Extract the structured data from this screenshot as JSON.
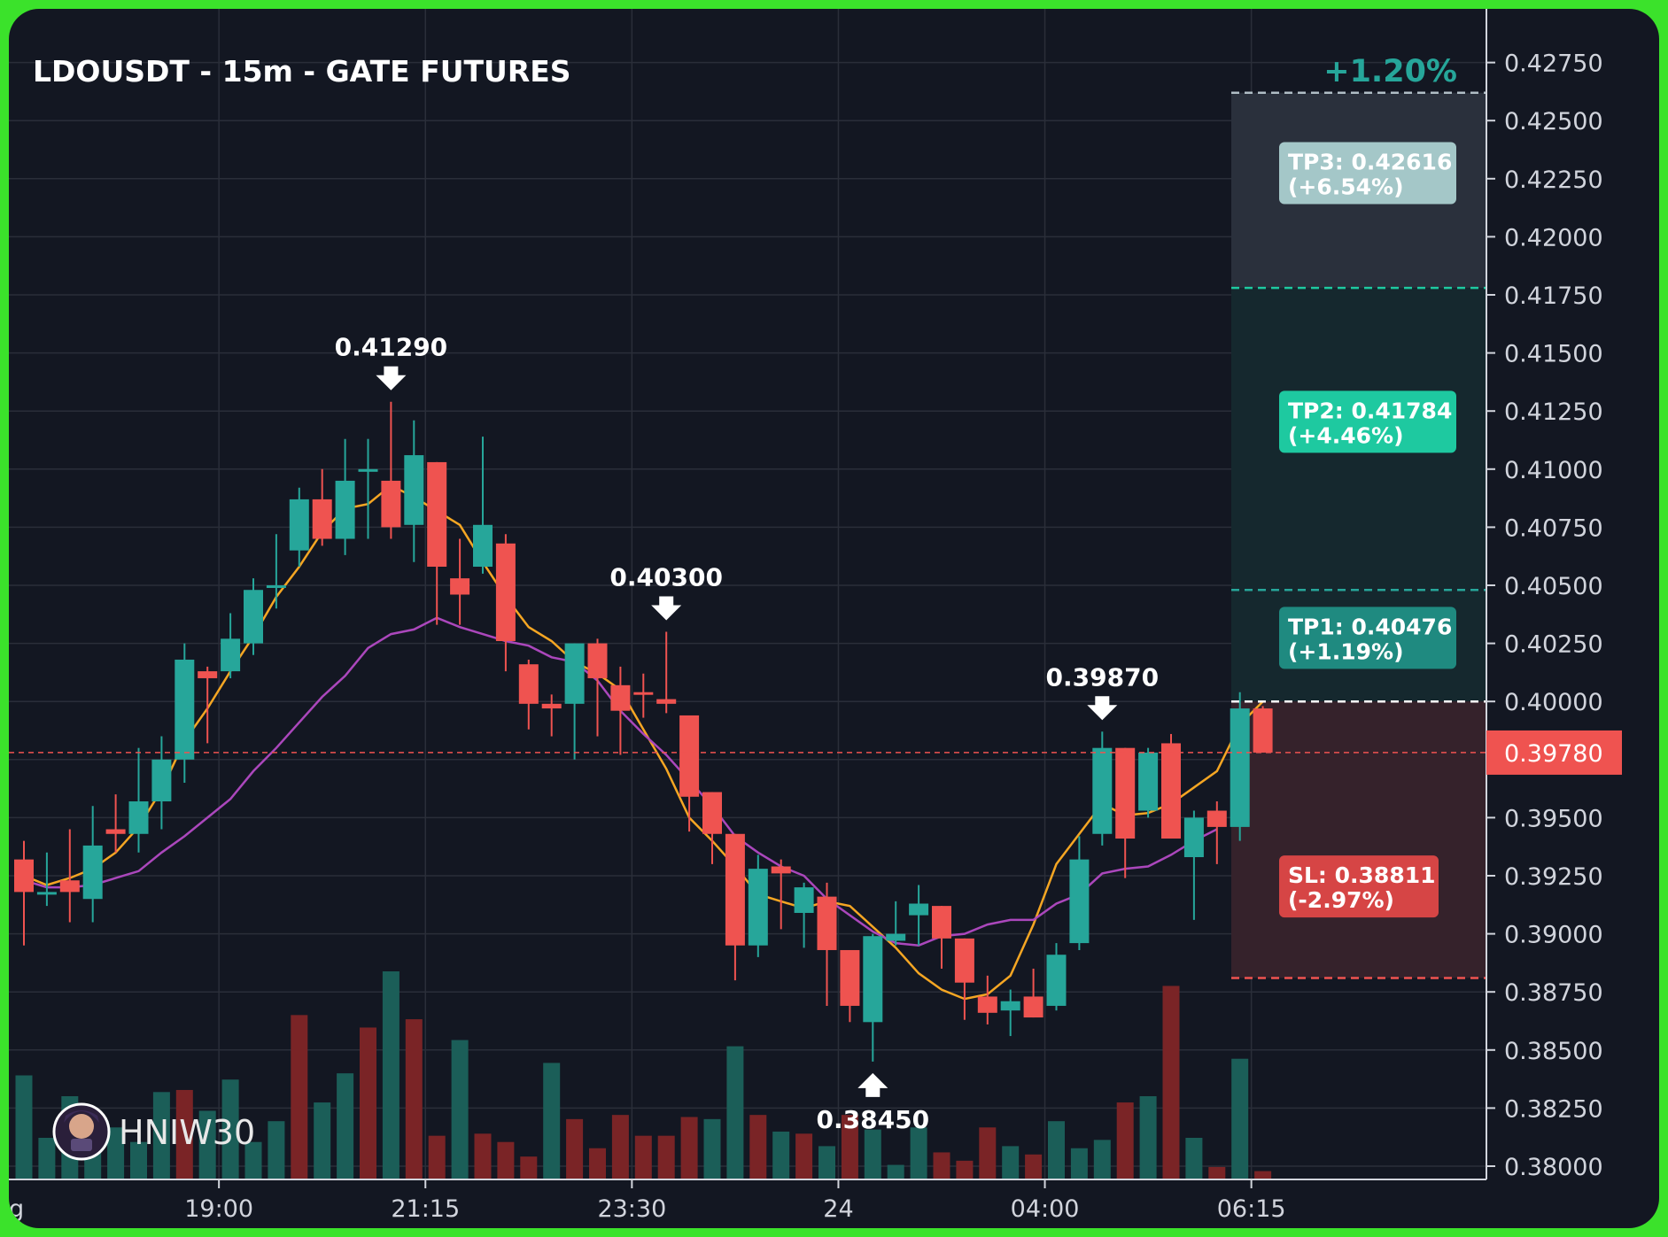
{
  "chart_data": {
    "type": "candlestick",
    "title": "LDOUSDT - 15m - GATE FUTURES",
    "grid": true,
    "ylim": [
      0.3792,
      0.429
    ],
    "y_ticks": [
      "0.38000",
      "0.38250",
      "0.38500",
      "0.38750",
      "0.39000",
      "0.39250",
      "0.39500",
      "0.39750",
      "0.40000",
      "0.40250",
      "0.40500",
      "0.40750",
      "0.41000",
      "0.41250",
      "0.41500",
      "0.41750",
      "0.42000",
      "0.42250",
      "0.42500",
      "0.42750"
    ],
    "x_ticks": [
      {
        "index": 8.5,
        "label": "19:00"
      },
      {
        "index": 17.5,
        "label": "21:15"
      },
      {
        "index": 26.5,
        "label": "23:30"
      },
      {
        "index": 35.5,
        "label": "24"
      },
      {
        "index": 44.5,
        "label": "04:00"
      },
      {
        "index": 53.5,
        "label": "06:15"
      }
    ],
    "x_edge_label": "g",
    "candles": [
      {
        "o": 0.3932,
        "h": 0.394,
        "l": 0.3895,
        "c": 0.3918
      },
      {
        "o": 0.3918,
        "h": 0.3935,
        "l": 0.3912,
        "c": 0.3918
      },
      {
        "o": 0.3923,
        "h": 0.3945,
        "l": 0.3905,
        "c": 0.3918
      },
      {
        "o": 0.3915,
        "h": 0.3955,
        "l": 0.3905,
        "c": 0.3938
      },
      {
        "o": 0.3945,
        "h": 0.396,
        "l": 0.3935,
        "c": 0.3943
      },
      {
        "o": 0.3943,
        "h": 0.398,
        "l": 0.3935,
        "c": 0.3957
      },
      {
        "o": 0.3957,
        "h": 0.3985,
        "l": 0.3945,
        "c": 0.3975
      },
      {
        "o": 0.3975,
        "h": 0.4025,
        "l": 0.3965,
        "c": 0.4018
      },
      {
        "o": 0.4013,
        "h": 0.4015,
        "l": 0.3982,
        "c": 0.401
      },
      {
        "o": 0.4013,
        "h": 0.4038,
        "l": 0.401,
        "c": 0.4027
      },
      {
        "o": 0.4025,
        "h": 0.4053,
        "l": 0.402,
        "c": 0.4048
      },
      {
        "o": 0.405,
        "h": 0.4072,
        "l": 0.404,
        "c": 0.405
      },
      {
        "o": 0.4065,
        "h": 0.4092,
        "l": 0.4058,
        "c": 0.4087
      },
      {
        "o": 0.4087,
        "h": 0.41,
        "l": 0.4067,
        "c": 0.407
      },
      {
        "o": 0.407,
        "h": 0.4113,
        "l": 0.4063,
        "c": 0.4095
      },
      {
        "o": 0.41,
        "h": 0.4113,
        "l": 0.407,
        "c": 0.41
      },
      {
        "o": 0.4095,
        "h": 0.4129,
        "l": 0.407,
        "c": 0.4075
      },
      {
        "o": 0.4076,
        "h": 0.4121,
        "l": 0.406,
        "c": 0.4106
      },
      {
        "o": 0.4103,
        "h": 0.4103,
        "l": 0.4033,
        "c": 0.4058
      },
      {
        "o": 0.4053,
        "h": 0.407,
        "l": 0.4033,
        "c": 0.4046
      },
      {
        "o": 0.4058,
        "h": 0.4114,
        "l": 0.4055,
        "c": 0.4076
      },
      {
        "o": 0.4068,
        "h": 0.4072,
        "l": 0.4013,
        "c": 0.4026
      },
      {
        "o": 0.4016,
        "h": 0.4018,
        "l": 0.3988,
        "c": 0.3999
      },
      {
        "o": 0.3999,
        "h": 0.4003,
        "l": 0.3985,
        "c": 0.3997
      },
      {
        "o": 0.3999,
        "h": 0.4025,
        "l": 0.3975,
        "c": 0.4025
      },
      {
        "o": 0.4025,
        "h": 0.4027,
        "l": 0.3985,
        "c": 0.401
      },
      {
        "o": 0.4007,
        "h": 0.4015,
        "l": 0.3977,
        "c": 0.3996
      },
      {
        "o": 0.4004,
        "h": 0.4012,
        "l": 0.3993,
        "c": 0.4003
      },
      {
        "o": 0.4001,
        "h": 0.403,
        "l": 0.3995,
        "c": 0.3999
      },
      {
        "o": 0.3994,
        "h": 0.3994,
        "l": 0.3944,
        "c": 0.3959
      },
      {
        "o": 0.3961,
        "h": 0.3961,
        "l": 0.393,
        "c": 0.3943
      },
      {
        "o": 0.3943,
        "h": 0.3943,
        "l": 0.388,
        "c": 0.3895
      },
      {
        "o": 0.3895,
        "h": 0.3934,
        "l": 0.389,
        "c": 0.3928
      },
      {
        "o": 0.3929,
        "h": 0.3932,
        "l": 0.3902,
        "c": 0.3926
      },
      {
        "o": 0.3909,
        "h": 0.3922,
        "l": 0.3894,
        "c": 0.392
      },
      {
        "o": 0.3916,
        "h": 0.3922,
        "l": 0.3869,
        "c": 0.3893
      },
      {
        "o": 0.3893,
        "h": 0.3893,
        "l": 0.3862,
        "c": 0.3869
      },
      {
        "o": 0.3862,
        "h": 0.39,
        "l": 0.3845,
        "c": 0.3899
      },
      {
        "o": 0.3897,
        "h": 0.3914,
        "l": 0.3895,
        "c": 0.39
      },
      {
        "o": 0.3908,
        "h": 0.3921,
        "l": 0.3895,
        "c": 0.3913
      },
      {
        "o": 0.3912,
        "h": 0.3912,
        "l": 0.3885,
        "c": 0.3898
      },
      {
        "o": 0.3898,
        "h": 0.3898,
        "l": 0.3863,
        "c": 0.3879
      },
      {
        "o": 0.3873,
        "h": 0.3882,
        "l": 0.3861,
        "c": 0.3866
      },
      {
        "o": 0.3867,
        "h": 0.3876,
        "l": 0.3856,
        "c": 0.3871
      },
      {
        "o": 0.3873,
        "h": 0.3885,
        "l": 0.3864,
        "c": 0.3864
      },
      {
        "o": 0.3869,
        "h": 0.3896,
        "l": 0.3867,
        "c": 0.3891
      },
      {
        "o": 0.3896,
        "h": 0.3942,
        "l": 0.3893,
        "c": 0.3932
      },
      {
        "o": 0.3943,
        "h": 0.3987,
        "l": 0.3938,
        "c": 0.398
      },
      {
        "o": 0.398,
        "h": 0.398,
        "l": 0.3924,
        "c": 0.3941
      },
      {
        "o": 0.3953,
        "h": 0.398,
        "l": 0.395,
        "c": 0.3978
      },
      {
        "o": 0.3982,
        "h": 0.3986,
        "l": 0.3941,
        "c": 0.3941
      },
      {
        "o": 0.3933,
        "h": 0.3953,
        "l": 0.3906,
        "c": 0.395
      },
      {
        "o": 0.3953,
        "h": 0.3957,
        "l": 0.393,
        "c": 0.3946
      },
      {
        "o": 0.3946,
        "h": 0.4004,
        "l": 0.394,
        "c": 0.3997
      },
      {
        "o": 0.3997,
        "h": 0.3998,
        "l": 0.3978,
        "c": 0.3978
      }
    ],
    "volume": [
      {
        "v": 0.5,
        "up": true
      },
      {
        "v": 0.2,
        "up": true
      },
      {
        "v": 0.4,
        "up": true
      },
      {
        "v": 0.3,
        "up": true
      },
      {
        "v": 0.25,
        "up": true
      },
      {
        "v": 0.18,
        "up": true
      },
      {
        "v": 0.42,
        "up": true
      },
      {
        "v": 0.43,
        "up": false
      },
      {
        "v": 0.33,
        "up": true
      },
      {
        "v": 0.48,
        "up": true
      },
      {
        "v": 0.18,
        "up": true
      },
      {
        "v": 0.28,
        "up": true
      },
      {
        "v": 0.79,
        "up": false
      },
      {
        "v": 0.37,
        "up": true
      },
      {
        "v": 0.51,
        "up": true
      },
      {
        "v": 0.73,
        "up": false
      },
      {
        "v": 1.0,
        "up": true
      },
      {
        "v": 0.77,
        "up": false
      },
      {
        "v": 0.21,
        "up": false
      },
      {
        "v": 0.67,
        "up": true
      },
      {
        "v": 0.22,
        "up": false
      },
      {
        "v": 0.18,
        "up": false
      },
      {
        "v": 0.11,
        "up": false
      },
      {
        "v": 0.56,
        "up": true
      },
      {
        "v": 0.29,
        "up": false
      },
      {
        "v": 0.15,
        "up": false
      },
      {
        "v": 0.31,
        "up": false
      },
      {
        "v": 0.21,
        "up": false
      },
      {
        "v": 0.21,
        "up": false
      },
      {
        "v": 0.3,
        "up": false
      },
      {
        "v": 0.29,
        "up": true
      },
      {
        "v": 0.64,
        "up": true
      },
      {
        "v": 0.31,
        "up": false
      },
      {
        "v": 0.23,
        "up": true
      },
      {
        "v": 0.22,
        "up": false
      },
      {
        "v": 0.16,
        "up": true
      },
      {
        "v": 0.31,
        "up": false
      },
      {
        "v": 0.24,
        "up": true
      },
      {
        "v": 0.07,
        "up": true
      },
      {
        "v": 0.25,
        "up": true
      },
      {
        "v": 0.13,
        "up": false
      },
      {
        "v": 0.09,
        "up": false
      },
      {
        "v": 0.25,
        "up": false
      },
      {
        "v": 0.16,
        "up": true
      },
      {
        "v": 0.12,
        "up": false
      },
      {
        "v": 0.28,
        "up": true
      },
      {
        "v": 0.15,
        "up": true
      },
      {
        "v": 0.19,
        "up": true
      },
      {
        "v": 0.37,
        "up": false
      },
      {
        "v": 0.4,
        "up": true
      },
      {
        "v": 0.93,
        "up": false
      },
      {
        "v": 0.2,
        "up": true
      },
      {
        "v": 0.06,
        "up": false
      },
      {
        "v": 0.58,
        "up": true
      },
      {
        "v": 0.04,
        "up": false
      }
    ],
    "ma_fast": [
      0.3925,
      0.3921,
      0.3924,
      0.3928,
      0.3935,
      0.3946,
      0.3962,
      0.3983,
      0.3997,
      0.4013,
      0.4028,
      0.4045,
      0.4058,
      0.4073,
      0.4083,
      0.4085,
      0.4093,
      0.4088,
      0.4082,
      0.4076,
      0.406,
      0.4045,
      0.4032,
      0.4026,
      0.4017,
      0.4012,
      0.4005,
      0.3988,
      0.3971,
      0.395,
      0.394,
      0.3929,
      0.3917,
      0.3914,
      0.3911,
      0.3914,
      0.3912,
      0.3903,
      0.3894,
      0.3883,
      0.3876,
      0.3872,
      0.3874,
      0.3882,
      0.3904,
      0.393,
      0.3943,
      0.3956,
      0.3951,
      0.3952,
      0.3956,
      0.3963,
      0.397,
      0.399,
      0.4
    ],
    "ma_slow": [
      0.3923,
      0.392,
      0.392,
      0.3921,
      0.3924,
      0.3927,
      0.3935,
      0.3942,
      0.395,
      0.3958,
      0.397,
      0.398,
      0.3991,
      0.4002,
      0.4011,
      0.4023,
      0.4029,
      0.4031,
      0.4036,
      0.4032,
      0.4029,
      0.4026,
      0.4024,
      0.4019,
      0.4017,
      0.4009,
      0.3996,
      0.3986,
      0.3977,
      0.3966,
      0.3955,
      0.3942,
      0.3935,
      0.3929,
      0.3925,
      0.3915,
      0.3908,
      0.3901,
      0.3896,
      0.3895,
      0.3899,
      0.39,
      0.3904,
      0.3906,
      0.3906,
      0.3913,
      0.3917,
      0.3926,
      0.3928,
      0.3929,
      0.3934,
      0.394,
      0.3945
    ],
    "current_price": 0.3978,
    "current_price_label": "0.39780",
    "entry_level": 0.4,
    "annotations": [
      {
        "label": "0.41290",
        "index": 16,
        "price": 0.4129,
        "dir": "down"
      },
      {
        "label": "0.40300",
        "index": 28,
        "price": 0.403,
        "dir": "down"
      },
      {
        "label": "0.39870",
        "index": 47,
        "price": 0.3987,
        "dir": "down"
      },
      {
        "label": "0.38450",
        "index": 37,
        "price": 0.3845,
        "dir": "up"
      }
    ],
    "targets": [
      {
        "name": "TP3",
        "price": 0.4262,
        "line1": "TP3: 0.42616",
        "line2": "(+6.54%)",
        "box_color": "#a4c7c8",
        "text_color": "#ffffff"
      },
      {
        "name": "TP2",
        "price": 0.4178,
        "line1": "TP2: 0.41784",
        "line2": "(+4.46%)",
        "box_color": "#1ec9a0",
        "text_color": "#ffffff"
      },
      {
        "name": "TP1",
        "price": 0.4048,
        "line1": "TP1: 0.40476",
        "line2": "(+1.19%)",
        "box_color": "#1f8a80",
        "text_color": "#ffffff"
      },
      {
        "name": "SL",
        "price": 0.3881,
        "line1": "SL: 0.38811",
        "line2": "(-2.97%)",
        "box_color": "#d64545",
        "text_color": "#ffffff"
      }
    ],
    "percent_label": "+1.20%",
    "watermark": "HNIW30"
  },
  "colors": {
    "background": "#131722",
    "up": "#26a69a",
    "down": "#ef5350",
    "up_volume": "#1b5e58",
    "down_volume": "#7a2426",
    "ma_fast": "#f5a623",
    "ma_slow": "#ab47bc",
    "grid": "#2a2e39",
    "axis_text": "#d1d4dc",
    "percent": "#26a69a",
    "frame": "#3be22b"
  }
}
